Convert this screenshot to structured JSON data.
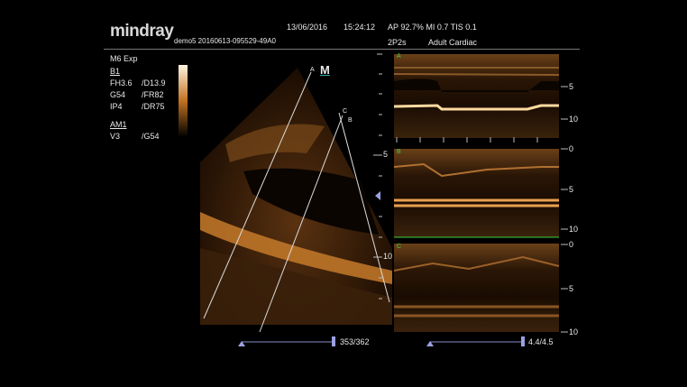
{
  "header": {
    "logo": "mindray",
    "patient_id": "demo5 20160613-095529-49A0",
    "date": "13/06/2016",
    "time": "15:24:12",
    "acoustic": "AP 92.7%  MI 0.7  TIS 0.1",
    "probe": "2P2s",
    "exam": "Adult Cardiac"
  },
  "params": {
    "mode": "M6 Exp",
    "b_label": "B1",
    "b_rows": [
      [
        "FH3.6",
        "/D13.9"
      ],
      [
        "G54",
        "/FR82"
      ],
      [
        "IP4",
        "/DR75"
      ]
    ],
    "am_label": "AM1",
    "am_rows": [
      [
        "V3",
        "/G54"
      ]
    ]
  },
  "bmode": {
    "line_labels": {
      "a": "A",
      "b": "B",
      "c": "C"
    },
    "m_marker": "M",
    "depth_labels": [
      "5",
      "10"
    ],
    "cine_counter": "353/362"
  },
  "mmode": {
    "panels": [
      {
        "label": "A",
        "scale": [
          "5",
          "10"
        ]
      },
      {
        "label": "B",
        "scale": [
          "0",
          "5",
          "10"
        ]
      },
      {
        "label": "C",
        "scale": [
          "0",
          "5",
          "10"
        ]
      }
    ],
    "cine_counter": "4.4/4.5"
  },
  "colors": {
    "label_green": "#3fcf3f",
    "tissue": "#e8a040",
    "cine_bar": "#8890c8"
  }
}
